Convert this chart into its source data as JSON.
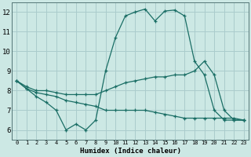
{
  "xlabel": "Humidex (Indice chaleur)",
  "bg_color": "#cce8e4",
  "line_color": "#1a6e65",
  "grid_color": "#aacccc",
  "xlim": [
    -0.5,
    23.5
  ],
  "ylim": [
    5.5,
    12.5
  ],
  "xticks": [
    0,
    1,
    2,
    3,
    4,
    5,
    6,
    7,
    8,
    9,
    10,
    11,
    12,
    13,
    14,
    15,
    16,
    17,
    18,
    19,
    20,
    21,
    22,
    23
  ],
  "yticks": [
    6,
    7,
    8,
    9,
    10,
    11,
    12
  ],
  "line1_x": [
    0,
    1,
    2,
    3,
    4,
    5,
    6,
    7,
    8,
    9,
    10,
    11,
    12,
    13,
    14,
    15,
    16,
    17,
    18,
    19,
    20,
    21,
    22,
    23
  ],
  "line1_y": [
    8.5,
    8.1,
    7.7,
    7.4,
    7.0,
    6.0,
    6.3,
    6.0,
    6.5,
    9.0,
    10.7,
    11.8,
    12.0,
    12.15,
    11.55,
    12.05,
    12.1,
    11.8,
    9.5,
    8.8,
    7.0,
    6.5,
    6.5,
    6.5
  ],
  "line2_x": [
    0,
    1,
    2,
    3,
    4,
    5,
    6,
    7,
    8,
    9,
    10,
    11,
    12,
    13,
    14,
    15,
    16,
    17,
    18,
    19,
    20,
    21,
    22,
    23
  ],
  "line2_y": [
    8.5,
    8.2,
    8.0,
    8.0,
    7.9,
    7.8,
    7.8,
    7.8,
    7.8,
    8.0,
    8.2,
    8.4,
    8.5,
    8.6,
    8.7,
    8.7,
    8.8,
    8.8,
    9.0,
    9.5,
    8.8,
    7.0,
    6.5,
    6.5
  ],
  "line3_x": [
    0,
    1,
    2,
    3,
    4,
    5,
    6,
    7,
    8,
    9,
    10,
    11,
    12,
    13,
    14,
    15,
    16,
    17,
    18,
    19,
    20,
    21,
    22,
    23
  ],
  "line3_y": [
    8.5,
    8.1,
    7.9,
    7.8,
    7.7,
    7.5,
    7.4,
    7.3,
    7.2,
    7.0,
    7.0,
    7.0,
    7.0,
    7.0,
    6.9,
    6.8,
    6.7,
    6.6,
    6.6,
    6.6,
    6.6,
    6.6,
    6.6,
    6.5
  ]
}
